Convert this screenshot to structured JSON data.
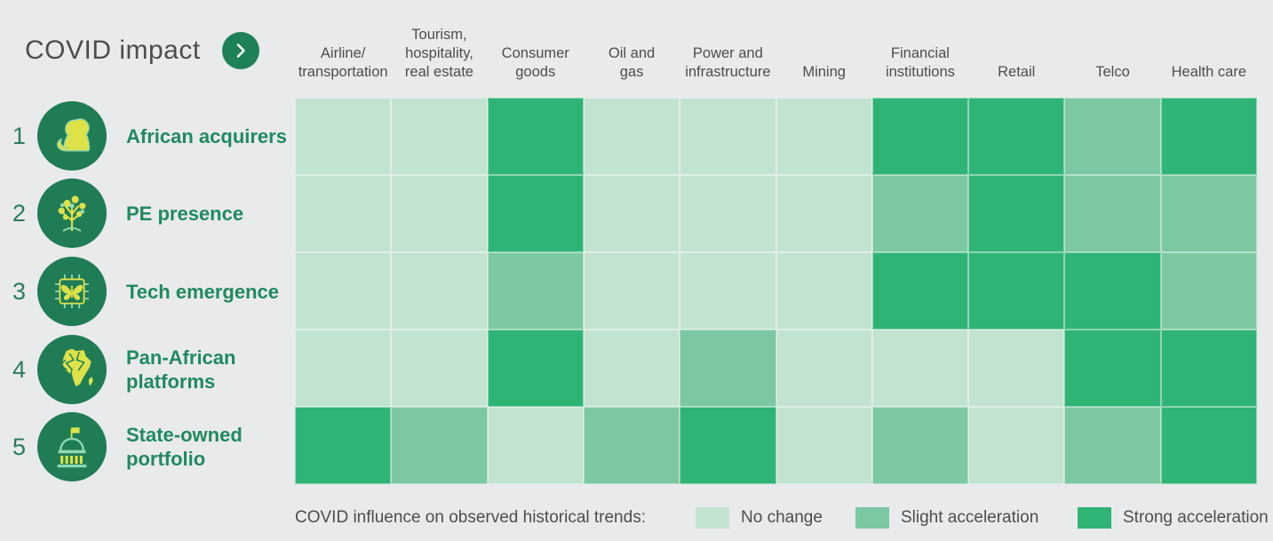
{
  "header": {
    "title": "COVID impact"
  },
  "columns": [
    "Airline/\ntransportation",
    "Tourism,\nhospitality,\nreal estate",
    "Consumer\ngoods",
    "Oil and\ngas",
    "Power and\ninfrastructure",
    "Mining",
    "Financial\ninstitutions",
    "Retail",
    "Telco",
    "Health care"
  ],
  "rows": [
    {
      "number": "1",
      "icon": "lion-icon",
      "label": "African acquirers"
    },
    {
      "number": "2",
      "icon": "tree-icon",
      "label": "PE presence"
    },
    {
      "number": "3",
      "icon": "tech-chip-butterfly-icon",
      "label": "Tech emergence"
    },
    {
      "number": "4",
      "icon": "africa-map-icon",
      "label": "Pan-African\nplatforms"
    },
    {
      "number": "5",
      "icon": "government-building-icon",
      "label": "State-owned\nportfolio"
    }
  ],
  "legend": {
    "caption": "COVID influence on observed historical trends:",
    "items": [
      {
        "label": "No change",
        "key": "no_change"
      },
      {
        "label": "Slight acceleration",
        "key": "slight"
      },
      {
        "label": "Strong acceleration",
        "key": "strong"
      }
    ]
  },
  "colors": {
    "no_change": "#c3e3d1",
    "slight": "#7cc8a2",
    "strong": "#2fb476",
    "icon_circle": "#1f7c55",
    "accent_button": "#1e8158",
    "row_label_text": "#1f8a5e",
    "row_number_text": "#2b7b5a",
    "heading_text": "#4d4d4d",
    "background": "#e9eaec",
    "icon_yellow": "#dde249",
    "icon_light_green": "#8fd8b0"
  },
  "chart_data": {
    "type": "heatmap",
    "title": "COVID impact",
    "x_categories": [
      "Airline/transportation",
      "Tourism, hospitality, real estate",
      "Consumer goods",
      "Oil and gas",
      "Power and infrastructure",
      "Mining",
      "Financial institutions",
      "Retail",
      "Telco",
      "Health care"
    ],
    "y_categories": [
      "African acquirers",
      "PE presence",
      "Tech emergence",
      "Pan-African platforms",
      "State-owned portfolio"
    ],
    "legend_caption": "COVID influence on observed historical trends:",
    "levels": {
      "no_change": "No change",
      "slight": "Slight acceleration",
      "strong": "Strong acceleration"
    },
    "legend_position": "bottom",
    "matrix": [
      [
        "no_change",
        "no_change",
        "strong",
        "no_change",
        "no_change",
        "no_change",
        "strong",
        "strong",
        "slight",
        "strong"
      ],
      [
        "no_change",
        "no_change",
        "strong",
        "no_change",
        "no_change",
        "no_change",
        "slight",
        "strong",
        "slight",
        "slight"
      ],
      [
        "no_change",
        "no_change",
        "slight",
        "no_change",
        "no_change",
        "no_change",
        "strong",
        "strong",
        "strong",
        "slight"
      ],
      [
        "no_change",
        "no_change",
        "strong",
        "no_change",
        "slight",
        "no_change",
        "no_change",
        "no_change",
        "strong",
        "strong"
      ],
      [
        "strong",
        "slight",
        "no_change",
        "slight",
        "strong",
        "no_change",
        "slight",
        "no_change",
        "slight",
        "strong"
      ]
    ]
  }
}
